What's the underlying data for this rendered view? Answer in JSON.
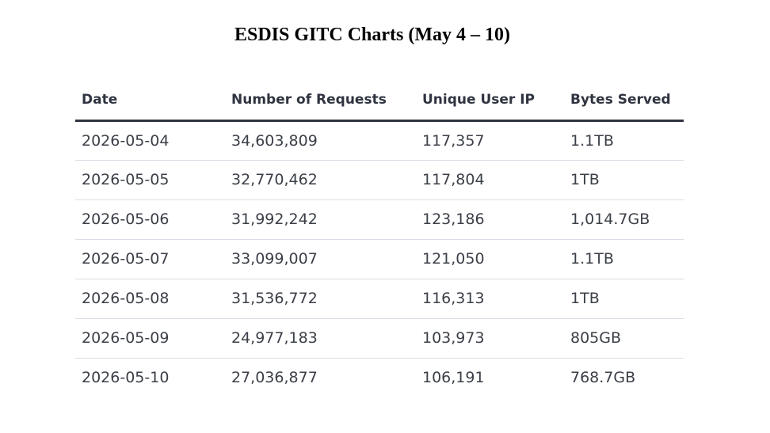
{
  "title": "ESDIS GITC Charts (May 4 – 10)",
  "table": {
    "headers": [
      "Date",
      "Number of Requests",
      "Unique User IP",
      "Bytes Served"
    ],
    "rows": [
      [
        "2026-05-04",
        "34,603,809",
        "117,357",
        "1.1TB"
      ],
      [
        "2026-05-05",
        "32,770,462",
        "117,804",
        "1TB"
      ],
      [
        "2026-05-06",
        "31,992,242",
        "123,186",
        "1,014.7GB"
      ],
      [
        "2026-05-07",
        "33,099,007",
        "121,050",
        "1.1TB"
      ],
      [
        "2026-05-08",
        "31,536,772",
        "116,313",
        "1TB"
      ],
      [
        "2026-05-09",
        "24,977,183",
        "103,973",
        "805GB"
      ],
      [
        "2026-05-10",
        "27,036,877",
        "106,191",
        "768.7GB"
      ]
    ]
  }
}
